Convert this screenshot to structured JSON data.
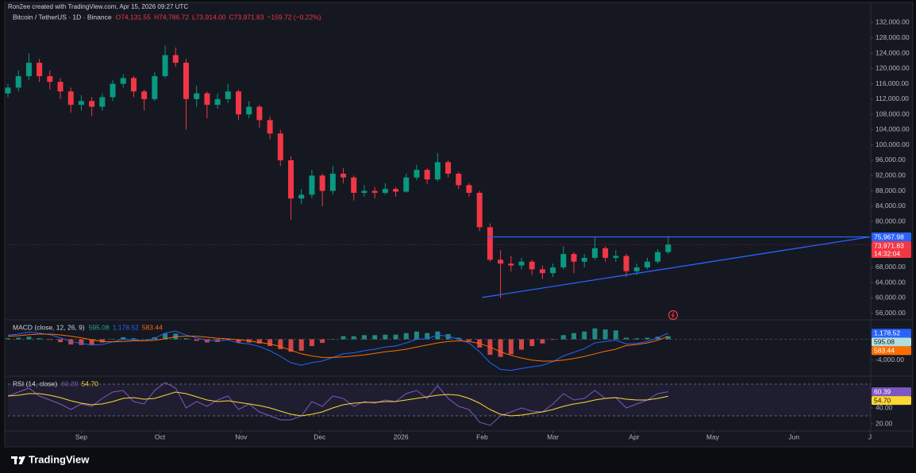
{
  "header": {
    "attribution": "Ron2ee created with TradingView.com, Apr 15, 2026 09:27 UTC"
  },
  "footer": {
    "brand": "TradingView"
  },
  "chart_data": [
    {
      "type": "candlestick",
      "title": "Bitcoin / TetherUS · 1D · Binance",
      "legend_values": [
        "O74,131.55",
        "H74,786.72",
        "L73,914.00",
        "C73,971.83",
        "−159.72 (−0.22%)"
      ],
      "up_color": "#089981",
      "down_color": "#f23645",
      "x": [
        0,
        4,
        8,
        12,
        16,
        20,
        24,
        28,
        32,
        36,
        40,
        44,
        48,
        52,
        56,
        60,
        64,
        68,
        72,
        76,
        80,
        84,
        88,
        92,
        96,
        100,
        104,
        108,
        112,
        116,
        120,
        124,
        128,
        132,
        136,
        140,
        144,
        148,
        152,
        156,
        160,
        164,
        168,
        172,
        176,
        180,
        184,
        188,
        192,
        196,
        200,
        204,
        208,
        212,
        216,
        220,
        224,
        228,
        232,
        236,
        240,
        244,
        248,
        252
      ],
      "ohlc": [
        [
          113500,
          116000,
          112500,
          115000
        ],
        [
          115000,
          119500,
          114000,
          118000
        ],
        [
          118000,
          124000,
          117000,
          121500
        ],
        [
          121500,
          122500,
          116500,
          118000
        ],
        [
          118000,
          119500,
          114500,
          116500
        ],
        [
          116500,
          117500,
          112000,
          114000
        ],
        [
          114000,
          115000,
          108500,
          110500
        ],
        [
          110500,
          113000,
          109000,
          111500
        ],
        [
          111500,
          112500,
          107500,
          110000
        ],
        [
          110000,
          113500,
          109000,
          112500
        ],
        [
          112500,
          117000,
          111500,
          116000
        ],
        [
          116000,
          118500,
          115000,
          117500
        ],
        [
          117500,
          118000,
          112500,
          114000
        ],
        [
          114000,
          114500,
          109000,
          112000
        ],
        [
          112000,
          119000,
          111500,
          118000
        ],
        [
          118000,
          126000,
          117500,
          123500
        ],
        [
          123500,
          125500,
          120500,
          121500
        ],
        [
          121500,
          122500,
          104000,
          112000
        ],
        [
          112000,
          115500,
          110000,
          113500
        ],
        [
          113500,
          114000,
          107000,
          110500
        ],
        [
          110500,
          113500,
          109500,
          112000
        ],
        [
          112000,
          116000,
          111000,
          114000
        ],
        [
          114000,
          114500,
          106500,
          108000
        ],
        [
          108000,
          111500,
          107000,
          110000
        ],
        [
          110000,
          110500,
          104500,
          106500
        ],
        [
          106500,
          107500,
          101500,
          103000
        ],
        [
          103000,
          104000,
          94500,
          96000
        ],
        [
          96000,
          97000,
          80500,
          86000
        ],
        [
          86000,
          88500,
          84500,
          87000
        ],
        [
          87000,
          93500,
          86000,
          92000
        ],
        [
          92000,
          92500,
          84000,
          88000
        ],
        [
          88000,
          94500,
          87000,
          92500
        ],
        [
          92500,
          94000,
          90000,
          91500
        ],
        [
          91500,
          92000,
          85500,
          87500
        ],
        [
          87500,
          89500,
          86500,
          88000
        ],
        [
          88000,
          89000,
          86000,
          87500
        ],
        [
          87500,
          90000,
          87000,
          88500
        ],
        [
          88500,
          89000,
          86500,
          87800
        ],
        [
          87800,
          92500,
          87500,
          91500
        ],
        [
          91500,
          94800,
          90800,
          93500
        ],
        [
          93500,
          94000,
          89800,
          91000
        ],
        [
          91000,
          97900,
          90500,
          95500
        ],
        [
          95500,
          96000,
          91500,
          92500
        ],
        [
          92500,
          93000,
          88500,
          89500
        ],
        [
          89500,
          90000,
          86500,
          87500
        ],
        [
          87500,
          88000,
          77500,
          78500
        ],
        [
          78500,
          79500,
          69500,
          70000
        ],
        [
          70000,
          72500,
          60000,
          69000
        ],
        [
          69000,
          71000,
          67000,
          68500
        ],
        [
          68500,
          70500,
          67500,
          69500
        ],
        [
          69500,
          70000,
          66000,
          67500
        ],
        [
          67500,
          68500,
          65000,
          66500
        ],
        [
          66500,
          69000,
          65500,
          68000
        ],
        [
          68000,
          73500,
          67500,
          71500
        ],
        [
          71500,
          72000,
          66500,
          69500
        ],
        [
          69500,
          71500,
          68000,
          70500
        ],
        [
          70500,
          76000,
          70000,
          73000
        ],
        [
          73000,
          73500,
          69500,
          70500
        ],
        [
          70500,
          72500,
          69500,
          71000
        ],
        [
          71000,
          71500,
          65500,
          67000
        ],
        [
          67000,
          69000,
          66000,
          68000
        ],
        [
          68000,
          70500,
          67500,
          69500
        ],
        [
          69500,
          72800,
          69000,
          72000
        ],
        [
          72000,
          76200,
          71500,
          73971.83
        ]
      ],
      "xlim": [
        0,
        329
      ],
      "xticks": [
        {
          "value": 28,
          "label": "Sep"
        },
        {
          "value": 58,
          "label": "Oct"
        },
        {
          "value": 89,
          "label": "Nov"
        },
        {
          "value": 119,
          "label": "Dec"
        },
        {
          "value": 150,
          "label": "2026"
        },
        {
          "value": 181,
          "label": "Feb"
        },
        {
          "value": 208,
          "label": "Mar"
        },
        {
          "value": 239,
          "label": "Apr"
        },
        {
          "value": 269,
          "label": "May"
        },
        {
          "value": 300,
          "label": "Jun"
        },
        {
          "value": 329,
          "label": "J"
        }
      ],
      "ylim": [
        54500,
        135000
      ],
      "yticks": [
        {
          "value": 56000,
          "label": "56,000.00"
        },
        {
          "value": 60000,
          "label": "60,000.00"
        },
        {
          "value": 64000,
          "label": "64,000.00"
        },
        {
          "value": 68000,
          "label": "68,000.00"
        },
        {
          "value": 80000,
          "label": "80,000.00"
        },
        {
          "value": 84000,
          "label": "84,000.00"
        },
        {
          "value": 88000,
          "label": "88,000.00"
        },
        {
          "value": 92000,
          "label": "92,000.00"
        },
        {
          "value": 96000,
          "label": "96,000.00"
        },
        {
          "value": 100000,
          "label": "100,000.00"
        },
        {
          "value": 104000,
          "label": "104,000.00"
        },
        {
          "value": 108000,
          "label": "108,000.00"
        },
        {
          "value": 112000,
          "label": "112,000.00"
        },
        {
          "value": 116000,
          "label": "116,000.00"
        },
        {
          "value": 120000,
          "label": "120,000.00"
        },
        {
          "value": 124000,
          "label": "124,000.00"
        },
        {
          "value": 128000,
          "label": "128,000.00"
        },
        {
          "value": 132000,
          "label": "132,000.00"
        }
      ],
      "trendlines": [
        {
          "x": [
            181,
            329
          ],
          "y": [
            60140,
            75967.98
          ],
          "color": "#2962ff"
        },
        {
          "x": [
            183,
            329
          ],
          "y": [
            75967.98,
            75967.98
          ],
          "color": "#2962ff"
        }
      ],
      "price_labels": [
        {
          "value": 75967.98,
          "label": "75,967.98",
          "color": "#2962ff"
        },
        {
          "value": 73971.83,
          "label": "73,971.83",
          "color": "#f23645"
        }
      ],
      "countdown": "14:32:04"
    },
    {
      "type": "macd",
      "title": "MACD (close, 12, 26, 9)",
      "x": [
        0,
        4,
        8,
        12,
        16,
        20,
        24,
        28,
        32,
        36,
        40,
        44,
        48,
        52,
        56,
        60,
        64,
        68,
        72,
        76,
        80,
        84,
        88,
        92,
        96,
        100,
        104,
        108,
        112,
        116,
        120,
        124,
        128,
        132,
        136,
        140,
        144,
        148,
        152,
        156,
        160,
        164,
        168,
        172,
        176,
        180,
        184,
        188,
        192,
        196,
        200,
        204,
        208,
        212,
        216,
        220,
        224,
        228,
        232,
        236,
        240,
        244,
        248,
        252
      ],
      "histogram": {
        "up_color": "#26a69a",
        "down_color": "#ff5252",
        "value_label": "595.08",
        "label_color": "#b2dfdb",
        "values": [
          200,
          300,
          500,
          200,
          -100,
          -550,
          -1000,
          -1100,
          -1000,
          -600,
          0,
          400,
          200,
          0,
          400,
          1100,
          1100,
          200,
          -300,
          -600,
          -500,
          -200,
          -600,
          -600,
          -800,
          -1300,
          -1900,
          -2400,
          -2200,
          -1300,
          -700,
          0,
          600,
          600,
          800,
          800,
          900,
          900,
          1200,
          1500,
          1200,
          1500,
          1000,
          300,
          -300,
          -1600,
          -3000,
          -3400,
          -2900,
          -2000,
          -1300,
          -800,
          -100,
          800,
          1200,
          1500,
          2100,
          1900,
          1700,
          300,
          200,
          300,
          500,
          595.08
        ]
      },
      "macd": {
        "color": "#2962ff",
        "value_label": "1,178.52",
        "values": [
          800,
          1000,
          1400,
          1200,
          900,
          300,
          -400,
          -800,
          -1100,
          -1000,
          -500,
          0,
          -100,
          -300,
          200,
          1200,
          1600,
          800,
          300,
          -200,
          -300,
          -100,
          -700,
          -900,
          -1400,
          -2200,
          -3300,
          -4500,
          -5000,
          -4500,
          -4200,
          -3500,
          -2800,
          -2600,
          -2200,
          -1900,
          -1500,
          -1300,
          -700,
          0,
          100,
          800,
          600,
          0,
          -700,
          -2400,
          -4500,
          -5800,
          -6000,
          -5600,
          -5300,
          -5000,
          -4300,
          -3200,
          -2500,
          -1800,
          -700,
          -400,
          -200,
          -900,
          -800,
          -400,
          300,
          1178.52
        ]
      },
      "signal": {
        "color": "#ff6d00",
        "value_label": "583.44",
        "values": [
          600,
          700,
          900,
          1000,
          1000,
          850,
          600,
          300,
          -100,
          -400,
          -500,
          -400,
          -300,
          -300,
          -200,
          100,
          500,
          600,
          600,
          400,
          200,
          100,
          -100,
          -300,
          -600,
          -900,
          -1400,
          -2100,
          -2800,
          -3200,
          -3500,
          -3500,
          -3400,
          -3200,
          -3000,
          -2700,
          -2400,
          -2200,
          -1900,
          -1500,
          -1100,
          -700,
          -400,
          -300,
          -400,
          -800,
          -1500,
          -2400,
          -3100,
          -3600,
          -4000,
          -4200,
          -4200,
          -4000,
          -3700,
          -3300,
          -2800,
          -2300,
          -1900,
          -1200,
          -1000,
          -700,
          -200,
          583.44
        ]
      },
      "ylim": [
        -6800,
        3600
      ],
      "yticks": [
        {
          "value": -4000,
          "label": "-4,000.00"
        }
      ]
    },
    {
      "type": "rsi",
      "title": "RSI (14, close)",
      "x": [
        0,
        4,
        8,
        12,
        16,
        20,
        24,
        28,
        32,
        36,
        40,
        44,
        48,
        52,
        56,
        60,
        64,
        68,
        72,
        76,
        80,
        84,
        88,
        92,
        96,
        100,
        104,
        108,
        112,
        116,
        120,
        124,
        128,
        132,
        136,
        140,
        144,
        148,
        152,
        156,
        160,
        164,
        168,
        172,
        176,
        180,
        184,
        188,
        192,
        196,
        200,
        204,
        208,
        212,
        216,
        220,
        224,
        228,
        232,
        236,
        240,
        244,
        248,
        252
      ],
      "rsi": {
        "color": "#7e57c2",
        "value_label": "60.39",
        "values": [
          55,
          60,
          65,
          55,
          50,
          45,
          38,
          45,
          42,
          52,
          60,
          62,
          48,
          45,
          62,
          72,
          65,
          40,
          48,
          42,
          50,
          55,
          38,
          45,
          35,
          30,
          25,
          25,
          30,
          48,
          42,
          55,
          52,
          42,
          48,
          46,
          50,
          48,
          58,
          62,
          52,
          68,
          52,
          42,
          38,
          22,
          18,
          30,
          35,
          40,
          36,
          35,
          45,
          58,
          50,
          52,
          62,
          52,
          53,
          40,
          45,
          50,
          58,
          60.39
        ]
      },
      "ma": {
        "color": "#fdd835",
        "value_label": "54.70",
        "values": [
          55,
          56,
          58,
          58,
          56,
          53,
          49,
          46,
          44,
          45,
          48,
          52,
          53,
          51,
          52,
          56,
          60,
          58,
          54,
          50,
          48,
          49,
          47,
          45,
          43,
          40,
          36,
          32,
          30,
          32,
          35,
          40,
          44,
          46,
          47,
          47,
          48,
          48,
          50,
          52,
          54,
          56,
          57,
          56,
          52,
          46,
          38,
          32,
          30,
          31,
          33,
          35,
          38,
          42,
          45,
          47,
          50,
          52,
          53,
          51,
          50,
          50,
          52,
          54.7
        ]
      },
      "band": [
        30,
        70
      ],
      "ylim": [
        12,
        78
      ],
      "yticks": [
        {
          "value": 40,
          "label": "40.00"
        },
        {
          "value": 20,
          "label": "20.00"
        }
      ]
    }
  ]
}
